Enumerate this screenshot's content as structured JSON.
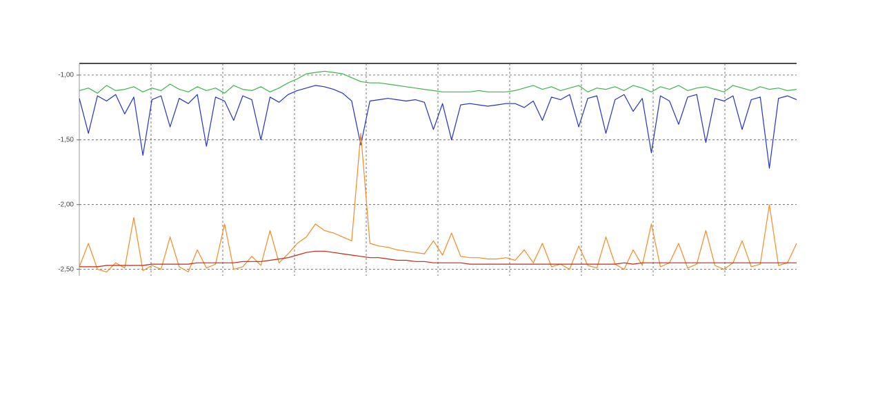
{
  "chart_data": {
    "type": "line",
    "ylim": [
      -2.55,
      -0.91
    ],
    "yticks": [
      {
        "value": -1,
        "label": "-1,00"
      },
      {
        "value": -1.5,
        "label": "-1,50"
      },
      {
        "value": -2,
        "label": "-2,00"
      },
      {
        "value": -2.5,
        "label": "-2,50"
      }
    ],
    "grid": true,
    "series": [
      {
        "color": "#3cb44b",
        "values": [
          -1.12,
          -1.1,
          -1.14,
          -1.08,
          -1.12,
          -1.11,
          -1.09,
          -1.13,
          -1.1,
          -1.12,
          -1.07,
          -1.11,
          -1.13,
          -1.09,
          -1.12,
          -1.1,
          -1.14,
          -1.08,
          -1.11,
          -1.12,
          -1.09,
          -1.13,
          -1.1,
          -1.06,
          -1.03,
          -0.99,
          -0.98,
          -0.97,
          -0.98,
          -0.99,
          -1.02,
          -1.05,
          -1.06,
          -1.06,
          -1.07,
          -1.08,
          -1.09,
          -1.1,
          -1.11,
          -1.12,
          -1.13,
          -1.13,
          -1.13,
          -1.13,
          -1.12,
          -1.13,
          -1.13,
          -1.13,
          -1.12,
          -1.1,
          -1.08,
          -1.11,
          -1.09,
          -1.12,
          -1.1,
          -1.08,
          -1.13,
          -1.1,
          -1.11,
          -1.09,
          -1.12,
          -1.08,
          -1.1,
          -1.13,
          -1.09,
          -1.11,
          -1.08,
          -1.12,
          -1.1,
          -1.09,
          -1.11,
          -1.13,
          -1.08,
          -1.1,
          -1.12,
          -1.09,
          -1.11,
          -1.1,
          -1.12,
          -1.11
        ]
      },
      {
        "color": "#1f2fd0",
        "values": [
          -1.18,
          -1.45,
          -1.16,
          -1.2,
          -1.15,
          -1.3,
          -1.17,
          -1.62,
          -1.19,
          -1.16,
          -1.4,
          -1.18,
          -1.22,
          -1.15,
          -1.55,
          -1.17,
          -1.2,
          -1.35,
          -1.16,
          -1.19,
          -1.5,
          -1.17,
          -1.21,
          -1.15,
          -1.12,
          -1.1,
          -1.08,
          -1.09,
          -1.11,
          -1.14,
          -1.2,
          -1.54,
          -1.2,
          -1.19,
          -1.18,
          -1.19,
          -1.2,
          -1.19,
          -1.21,
          -1.42,
          -1.22,
          -1.5,
          -1.23,
          -1.22,
          -1.23,
          -1.24,
          -1.23,
          -1.22,
          -1.22,
          -1.25,
          -1.2,
          -1.35,
          -1.17,
          -1.19,
          -1.15,
          -1.4,
          -1.18,
          -1.16,
          -1.45,
          -1.19,
          -1.15,
          -1.28,
          -1.18,
          -1.6,
          -1.16,
          -1.2,
          -1.38,
          -1.17,
          -1.15,
          -1.52,
          -1.18,
          -1.2,
          -1.16,
          -1.42,
          -1.19,
          -1.17,
          -1.72,
          -1.18,
          -1.16,
          -1.19
        ]
      },
      {
        "color": "#f7891f",
        "values": [
          -2.48,
          -2.3,
          -2.5,
          -2.52,
          -2.45,
          -2.49,
          -2.1,
          -2.51,
          -2.47,
          -2.5,
          -2.25,
          -2.48,
          -2.52,
          -2.35,
          -2.49,
          -2.46,
          -2.15,
          -2.5,
          -2.48,
          -2.4,
          -2.47,
          -2.2,
          -2.45,
          -2.38,
          -2.3,
          -2.25,
          -2.15,
          -2.2,
          -2.22,
          -2.25,
          -2.28,
          -1.45,
          -2.3,
          -2.32,
          -2.33,
          -2.35,
          -2.36,
          -2.37,
          -2.38,
          -2.28,
          -2.39,
          -2.22,
          -2.4,
          -2.41,
          -2.41,
          -2.42,
          -2.42,
          -2.41,
          -2.43,
          -2.35,
          -2.45,
          -2.3,
          -2.48,
          -2.46,
          -2.5,
          -2.32,
          -2.47,
          -2.49,
          -2.25,
          -2.46,
          -2.5,
          -2.35,
          -2.47,
          -2.15,
          -2.48,
          -2.45,
          -2.3,
          -2.49,
          -2.46,
          -2.2,
          -2.47,
          -2.5,
          -2.45,
          -2.28,
          -2.48,
          -2.46,
          -2.0,
          -2.47,
          -2.45,
          -2.3
        ]
      },
      {
        "color": "#c8220e",
        "values": [
          -2.48,
          -2.48,
          -2.48,
          -2.47,
          -2.47,
          -2.47,
          -2.47,
          -2.47,
          -2.46,
          -2.46,
          -2.46,
          -2.46,
          -2.46,
          -2.45,
          -2.45,
          -2.45,
          -2.45,
          -2.45,
          -2.44,
          -2.44,
          -2.44,
          -2.43,
          -2.42,
          -2.41,
          -2.39,
          -2.37,
          -2.36,
          -2.36,
          -2.37,
          -2.38,
          -2.39,
          -2.4,
          -2.41,
          -2.41,
          -2.42,
          -2.43,
          -2.43,
          -2.44,
          -2.44,
          -2.45,
          -2.45,
          -2.45,
          -2.45,
          -2.46,
          -2.46,
          -2.46,
          -2.46,
          -2.46,
          -2.46,
          -2.46,
          -2.46,
          -2.46,
          -2.46,
          -2.46,
          -2.46,
          -2.46,
          -2.46,
          -2.46,
          -2.46,
          -2.46,
          -2.45,
          -2.46,
          -2.45,
          -2.45,
          -2.45,
          -2.45,
          -2.45,
          -2.45,
          -2.45,
          -2.45,
          -2.45,
          -2.45,
          -2.45,
          -2.45,
          -2.45,
          -2.45,
          -2.45,
          -2.45,
          -2.45,
          -2.45
        ]
      }
    ]
  }
}
